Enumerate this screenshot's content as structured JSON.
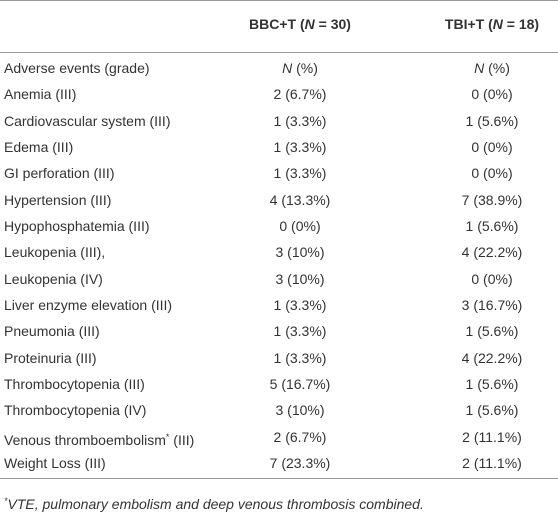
{
  "table": {
    "header": [
      "",
      {
        "pre": "BBC+T (",
        "em": "N",
        "post": " = 30)"
      },
      {
        "pre": "TBI+T (",
        "em": "N",
        "post": " = 18)"
      }
    ],
    "rows": [
      [
        "Adverse events (grade)",
        {
          "em": "N",
          "post": " (%)"
        },
        {
          "em": "N",
          "post": " (%)"
        }
      ],
      [
        "Anemia (III)",
        "2 (6.7%)",
        "0 (0%)"
      ],
      [
        "Cardiovascular system (III)",
        "1 (3.3%)",
        "1 (5.6%)"
      ],
      [
        "Edema (III)",
        "1 (3.3%)",
        "0 (0%)"
      ],
      [
        "GI perforation (III)",
        "1 (3.3%)",
        "0 (0%)"
      ],
      [
        "Hypertension (III)",
        "4 (13.3%)",
        "7 (38.9%)"
      ],
      [
        "Hypophosphatemia (III)",
        "0 (0%)",
        "1 (5.6%)"
      ],
      [
        "Leukopenia (III),",
        "3 (10%)",
        "4 (22.2%)"
      ],
      [
        "Leukopenia (IV)",
        "3 (10%)",
        "0 (0%)"
      ],
      [
        "Liver enzyme elevation (III)",
        "1 (3.3%)",
        "3 (16.7%)"
      ],
      [
        "Pneumonia (III)",
        "1 (3.3%)",
        "1 (5.6%)"
      ],
      [
        "Proteinuria (III)",
        "1 (3.3%)",
        "4 (22.2%)"
      ],
      [
        "Thrombocytopenia (III)",
        "5 (16.7%)",
        "1 (5.6%)"
      ],
      [
        "Thrombocytopenia (IV)",
        "3 (10%)",
        "1 (5.6%)"
      ],
      [
        {
          "pre": "Venous thromboembolism",
          "sup": "*",
          "post": " (III)"
        },
        "2 (6.7%)",
        "2 (11.1%)"
      ],
      [
        "Weight Loss (III)",
        "7 (23.3%)",
        "2 (11.1%)"
      ]
    ],
    "footnote": {
      "mark": "*",
      "text": "VTE, pulmonary embolism and deep venous thrombosis combined."
    }
  }
}
